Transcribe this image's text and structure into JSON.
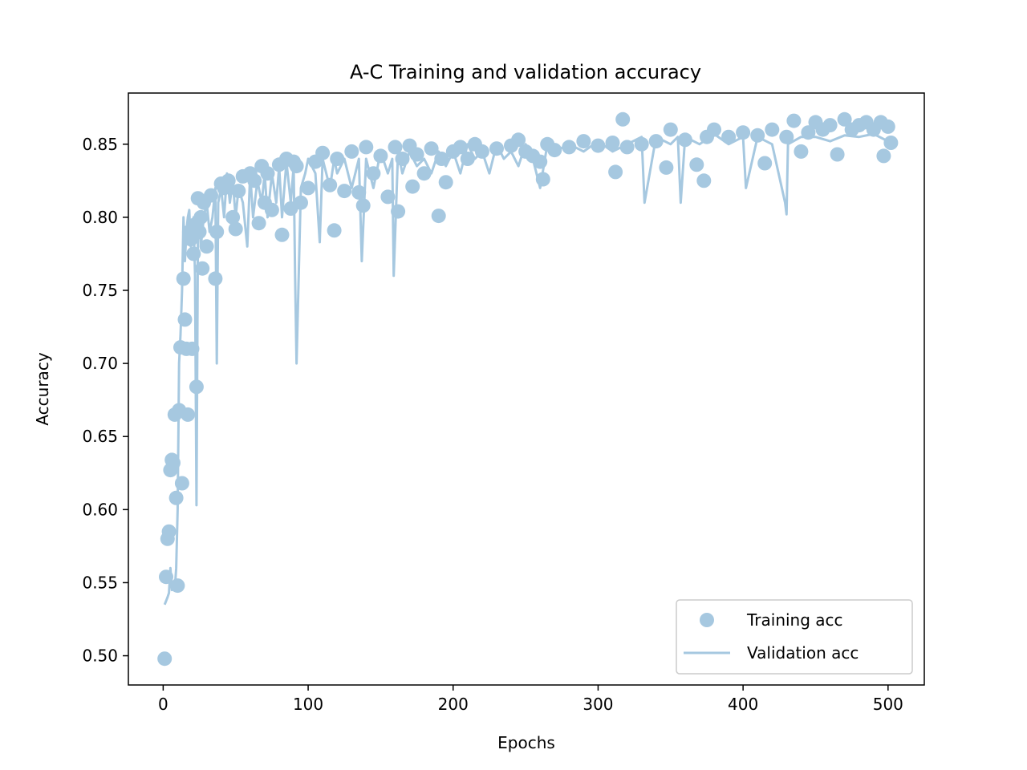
{
  "chart_data": {
    "type": "line",
    "title": "A-C Training and validation accuracy",
    "xlabel": "Epochs",
    "ylabel": "Accuracy",
    "xlim": [
      -24,
      525
    ],
    "ylim": [
      0.48,
      0.885
    ],
    "xticks": [
      0,
      100,
      200,
      300,
      400,
      500
    ],
    "yticks": [
      0.5,
      0.55,
      0.6,
      0.65,
      0.7,
      0.75,
      0.8,
      0.85
    ],
    "grid": false,
    "legend_position": "lower-right",
    "color": "#a6c8e0",
    "legend": [
      {
        "label": "Training acc",
        "style": "marker"
      },
      {
        "label": "Validation acc",
        "style": "line"
      }
    ],
    "series": [
      {
        "name": "Training acc",
        "style": "scatter",
        "x": [
          1,
          2,
          3,
          4,
          5,
          6,
          7,
          8,
          9,
          10,
          11,
          12,
          13,
          14,
          15,
          16,
          17,
          18,
          19,
          20,
          21,
          22,
          23,
          24,
          25,
          26,
          27,
          28,
          30,
          33,
          36,
          37,
          40,
          42,
          45,
          48,
          50,
          52,
          55,
          60,
          63,
          66,
          68,
          70,
          72,
          75,
          80,
          82,
          85,
          88,
          90,
          92,
          95,
          100,
          105,
          110,
          115,
          118,
          120,
          125,
          130,
          135,
          138,
          140,
          145,
          150,
          155,
          160,
          162,
          165,
          170,
          172,
          175,
          180,
          185,
          190,
          192,
          195,
          200,
          205,
          210,
          215,
          220,
          230,
          240,
          245,
          250,
          255,
          260,
          262,
          265,
          270,
          280,
          290,
          300,
          310,
          312,
          317,
          320,
          330,
          340,
          347,
          350,
          360,
          368,
          373,
          375,
          380,
          390,
          400,
          410,
          415,
          420,
          430,
          435,
          440,
          445,
          450,
          455,
          460,
          465,
          470,
          475,
          480,
          485,
          490,
          495,
          497,
          500,
          502
        ],
        "y": [
          0.498,
          0.554,
          0.58,
          0.585,
          0.627,
          0.634,
          0.632,
          0.665,
          0.608,
          0.548,
          0.668,
          0.711,
          0.618,
          0.758,
          0.73,
          0.71,
          0.665,
          0.79,
          0.785,
          0.71,
          0.775,
          0.795,
          0.684,
          0.813,
          0.79,
          0.8,
          0.765,
          0.81,
          0.78,
          0.815,
          0.758,
          0.79,
          0.823,
          0.82,
          0.825,
          0.8,
          0.792,
          0.818,
          0.828,
          0.83,
          0.825,
          0.796,
          0.835,
          0.81,
          0.83,
          0.805,
          0.836,
          0.788,
          0.84,
          0.806,
          0.838,
          0.835,
          0.81,
          0.82,
          0.838,
          0.844,
          0.822,
          0.791,
          0.84,
          0.818,
          0.845,
          0.817,
          0.808,
          0.848,
          0.83,
          0.842,
          0.814,
          0.848,
          0.804,
          0.84,
          0.849,
          0.821,
          0.843,
          0.83,
          0.847,
          0.801,
          0.84,
          0.824,
          0.845,
          0.848,
          0.84,
          0.85,
          0.845,
          0.847,
          0.849,
          0.853,
          0.845,
          0.842,
          0.838,
          0.826,
          0.85,
          0.846,
          0.848,
          0.852,
          0.849,
          0.851,
          0.831,
          0.867,
          0.848,
          0.85,
          0.852,
          0.834,
          0.86,
          0.853,
          0.836,
          0.825,
          0.855,
          0.86,
          0.855,
          0.858,
          0.856,
          0.837,
          0.86,
          0.855,
          0.866,
          0.845,
          0.858,
          0.865,
          0.86,
          0.863,
          0.843,
          0.867,
          0.86,
          0.863,
          0.865,
          0.86,
          0.865,
          0.842,
          0.862,
          0.851
        ]
      },
      {
        "name": "Validation acc",
        "style": "line",
        "x": [
          1,
          3,
          4,
          5,
          6,
          7,
          8,
          9,
          10,
          11,
          12,
          13,
          14,
          15,
          16,
          17,
          18,
          19,
          20,
          21,
          22,
          23,
          24,
          25,
          26,
          28,
          30,
          32,
          34,
          36,
          37,
          38,
          40,
          42,
          44,
          46,
          48,
          50,
          52,
          55,
          58,
          60,
          62,
          65,
          68,
          70,
          72,
          75,
          78,
          80,
          82,
          85,
          88,
          90,
          91,
          92,
          95,
          98,
          100,
          105,
          108,
          110,
          115,
          118,
          120,
          125,
          130,
          135,
          137,
          140,
          145,
          150,
          155,
          158,
          159,
          162,
          165,
          170,
          175,
          180,
          185,
          190,
          195,
          200,
          205,
          210,
          215,
          220,
          225,
          230,
          235,
          240,
          245,
          250,
          255,
          260,
          265,
          270,
          280,
          290,
          300,
          310,
          320,
          330,
          332,
          340,
          350,
          355,
          357,
          360,
          370,
          380,
          390,
          400,
          402,
          410,
          420,
          429,
          430,
          431,
          440,
          450,
          460,
          470,
          480,
          490,
          500
        ],
        "y": [
          0.535,
          0.54,
          0.543,
          0.56,
          0.545,
          0.55,
          0.545,
          0.56,
          0.6,
          0.7,
          0.72,
          0.75,
          0.8,
          0.77,
          0.79,
          0.8,
          0.805,
          0.78,
          0.79,
          0.8,
          0.76,
          0.603,
          0.79,
          0.8,
          0.78,
          0.8,
          0.81,
          0.79,
          0.8,
          0.82,
          0.7,
          0.81,
          0.82,
          0.8,
          0.83,
          0.81,
          0.825,
          0.8,
          0.82,
          0.81,
          0.78,
          0.83,
          0.8,
          0.825,
          0.81,
          0.83,
          0.8,
          0.83,
          0.81,
          0.835,
          0.8,
          0.838,
          0.81,
          0.835,
          0.76,
          0.7,
          0.82,
          0.83,
          0.84,
          0.83,
          0.783,
          0.84,
          0.82,
          0.84,
          0.83,
          0.84,
          0.82,
          0.84,
          0.77,
          0.84,
          0.82,
          0.845,
          0.83,
          0.84,
          0.76,
          0.845,
          0.83,
          0.845,
          0.835,
          0.84,
          0.83,
          0.845,
          0.835,
          0.845,
          0.83,
          0.85,
          0.84,
          0.845,
          0.83,
          0.85,
          0.84,
          0.845,
          0.835,
          0.85,
          0.84,
          0.82,
          0.85,
          0.845,
          0.85,
          0.845,
          0.852,
          0.845,
          0.85,
          0.855,
          0.81,
          0.855,
          0.85,
          0.855,
          0.81,
          0.855,
          0.85,
          0.857,
          0.85,
          0.855,
          0.82,
          0.855,
          0.85,
          0.81,
          0.802,
          0.85,
          0.855,
          0.855,
          0.852,
          0.856,
          0.855,
          0.857,
          0.852
        ]
      }
    ]
  }
}
